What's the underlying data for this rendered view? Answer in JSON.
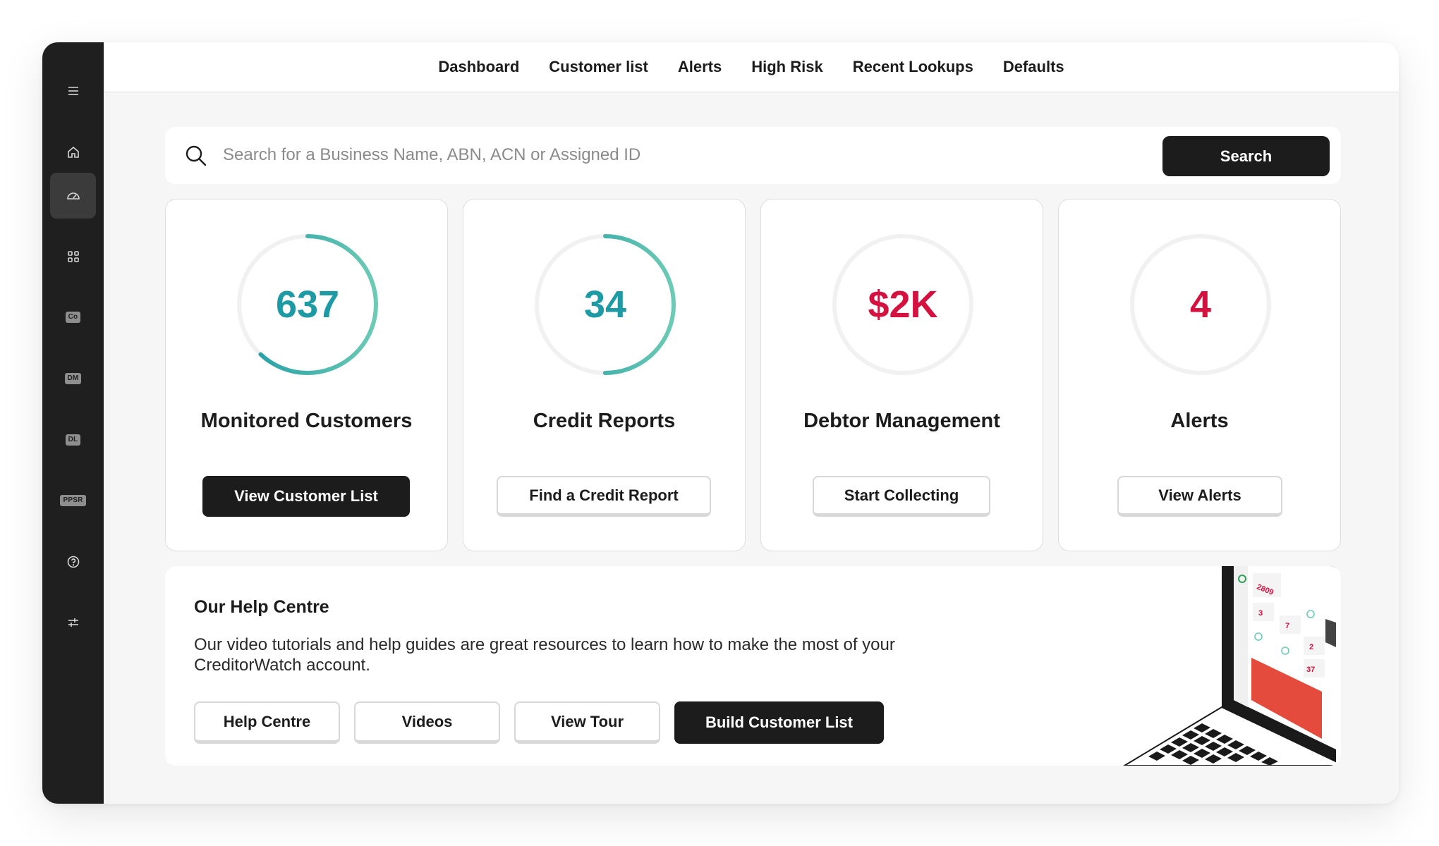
{
  "nav": {
    "items": [
      "Dashboard",
      "Customer list",
      "Alerts",
      "High Risk",
      "Recent Lookups",
      "Defaults"
    ]
  },
  "sidebar": {
    "items": [
      {
        "name": "menu",
        "icon": "hamburger-menu-icon"
      },
      {
        "name": "home",
        "icon": "home-icon"
      },
      {
        "name": "dashboard",
        "icon": "gauge-icon",
        "active": true
      },
      {
        "name": "apps",
        "icon": "grid-icon"
      },
      {
        "name": "co",
        "badge": "Co"
      },
      {
        "name": "dm",
        "badge": "DM"
      },
      {
        "name": "dl",
        "badge": "DL"
      },
      {
        "name": "ppsr",
        "badge": "PPSR"
      },
      {
        "name": "help",
        "icon": "help-circle-icon"
      },
      {
        "name": "settings",
        "icon": "sliders-icon"
      }
    ]
  },
  "search": {
    "placeholder": "Search for a Business Name, ABN, ACN or Assigned ID",
    "value": "",
    "button_label": "Search"
  },
  "cards": [
    {
      "value": "637",
      "title": "Monitored Customers",
      "button": "View Customer List",
      "value_color": "#1e9aa5",
      "ring_fill": 0.62
    },
    {
      "value": "34",
      "title": "Credit Reports",
      "button": "Find a Credit Report",
      "value_color": "#1e9aa5",
      "ring_fill": 0.5
    },
    {
      "value": "$2K",
      "title": "Debtor Management",
      "button": "Start Collecting",
      "value_color": "#d5123f",
      "ring_fill": 0
    },
    {
      "value": "4",
      "title": "Alerts",
      "button": "View Alerts",
      "value_color": "#d5123f",
      "ring_fill": 0
    }
  ],
  "help": {
    "title": "Our Help Centre",
    "text": "Our video tutorials and help guides are great resources to learn how to make the most of your CreditorWatch account.",
    "buttons": [
      "Help Centre",
      "Videos",
      "View Tour",
      "Build Customer List"
    ]
  },
  "laptop_screen": {
    "numbers": [
      "2809",
      "3",
      "7",
      "2",
      "37"
    ]
  },
  "colors": {
    "teal": "#1e9aa5",
    "teal_light": "#6dcbb4",
    "red": "#d5123f",
    "dark": "#1c1c1c",
    "sidebar_bg": "#1f1f1f"
  }
}
